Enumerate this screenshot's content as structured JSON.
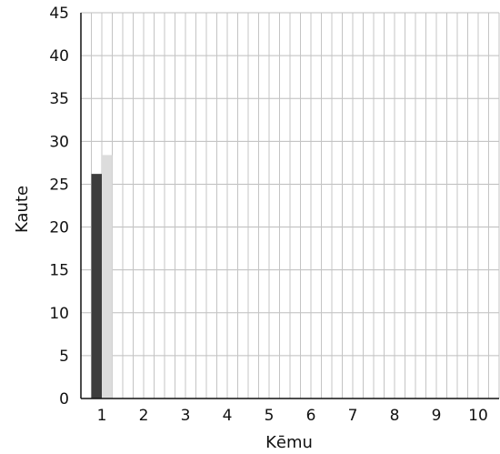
{
  "chart_data": {
    "type": "bar",
    "categories": [
      "1",
      "2",
      "3",
      "4",
      "5",
      "6",
      "7",
      "8",
      "9",
      "10"
    ],
    "series": [
      {
        "values": [
          26.2,
          null,
          null,
          null,
          null,
          null,
          null,
          null,
          null,
          null
        ],
        "color": "#3d3d3d"
      },
      {
        "values": [
          28.4,
          null,
          null,
          null,
          null,
          null,
          null,
          null,
          null,
          null
        ],
        "color": "#dcdcdc"
      }
    ],
    "xlabel": "Kēmu",
    "ylabel": "Kaute",
    "ylim": [
      0,
      45
    ],
    "yticks": [
      0,
      5,
      10,
      15,
      20,
      25,
      30,
      35,
      40,
      45
    ],
    "grid": true,
    "legend": "none"
  }
}
